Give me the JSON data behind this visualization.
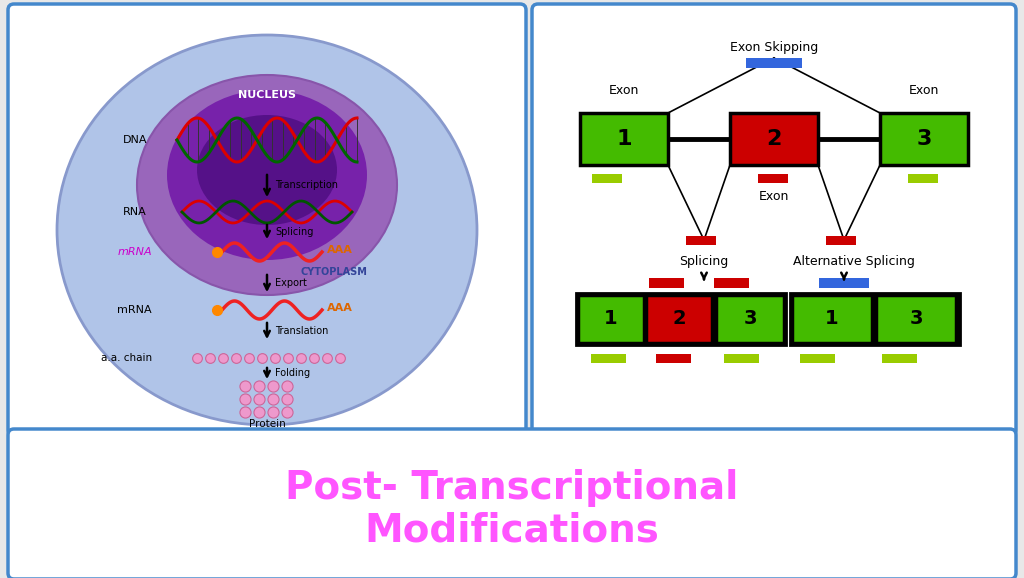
{
  "bg_color": "#e8e8e8",
  "title_text_line1": "Post- Transcriptional",
  "title_text_line2": "Modifications",
  "title_color": "#ff55ff",
  "title_fontsize": 28,
  "panel_border_color": "#4488cc",
  "panel_border_lw": 2.5,
  "green_color": "#44bb00",
  "red_color": "#cc0000",
  "blue_color": "#3366dd",
  "lime_color": "#99cc00",
  "cell_color": "#b0c4e8",
  "cell_edge": "#8899cc",
  "nucleus_outer": "#9966bb",
  "nucleus_inner": "#7722aa",
  "nucleus_deep": "#551188",
  "dna_red": "#dd0000",
  "dna_green": "#006600",
  "dna_dark_green": "#004400",
  "rna_red": "#dd0000",
  "rna_dark_green": "#005500",
  "mrna_red": "#ee2222",
  "mrna_orange": "#ff6600",
  "aa_pink": "#ee99cc",
  "aa_edge": "#cc6699",
  "prot_pink": "#ee99cc",
  "prot_edge": "#cc6699",
  "nucleus_text": "NUCLEUS",
  "cytoplasm_text": "CYTOPLASM",
  "dna_text": "DNA",
  "rna_text": "RNA",
  "mrna_text": "mRNA",
  "aaa_text": "AAA",
  "export_text": "Export",
  "transcription_text": "Transcription",
  "splicing_text": "Splicing",
  "translation_text": "Translation",
  "folding_text": "Folding",
  "protein_text": "Protein",
  "aa_text": "a.a. chain",
  "exon_skip_text": "Exon Skipping",
  "exon_text": "Exon",
  "splicing_label": "Splicing",
  "alt_splicing_label": "Alternative Splicing",
  "white": "#ffffff"
}
